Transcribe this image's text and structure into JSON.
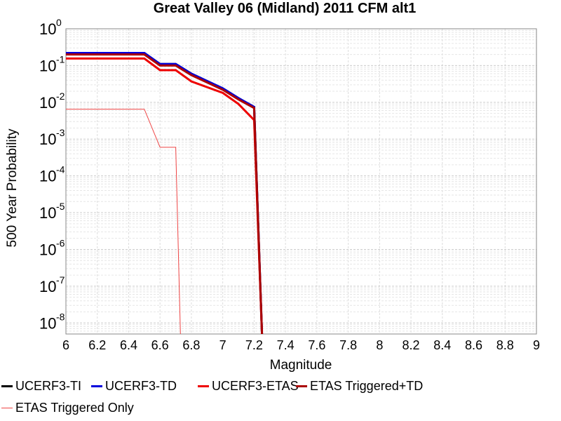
{
  "chart_data": {
    "type": "line",
    "title": "Great Valley 06 (Midland) 2011 CFM alt1",
    "xlabel": "Magnitude",
    "ylabel": "500 Year Probability",
    "xlim": [
      6,
      9
    ],
    "ylim_exponent": [
      -8.3,
      0
    ],
    "y_scale": "log",
    "grid": true,
    "legend_position": "bottom",
    "x_ticks": [
      "6",
      "6.2",
      "6.4",
      "6.6",
      "6.8",
      "7",
      "7.2",
      "7.4",
      "7.6",
      "7.8",
      "8",
      "8.2",
      "8.4",
      "8.6",
      "8.8",
      "9"
    ],
    "y_ticks": [
      {
        "base": "10",
        "exp": "0"
      },
      {
        "base": "10",
        "exp": "-1"
      },
      {
        "base": "10",
        "exp": "-2"
      },
      {
        "base": "10",
        "exp": "-3"
      },
      {
        "base": "10",
        "exp": "-4"
      },
      {
        "base": "10",
        "exp": "-5"
      },
      {
        "base": "10",
        "exp": "-6"
      },
      {
        "base": "10",
        "exp": "-7"
      },
      {
        "base": "10",
        "exp": "-8"
      }
    ],
    "series": [
      {
        "name": "UCERF3-TI",
        "color": "#000000",
        "width": 3,
        "points": [
          [
            6.0,
            0.22
          ],
          [
            6.5,
            0.22
          ],
          [
            6.6,
            0.11
          ],
          [
            6.7,
            0.11
          ],
          [
            6.8,
            0.06
          ],
          [
            7.0,
            0.024
          ],
          [
            7.1,
            0.013
          ],
          [
            7.2,
            0.0075
          ],
          [
            7.25,
            1e-09
          ]
        ]
      },
      {
        "name": "UCERF3-TD",
        "color": "#0000dd",
        "width": 3,
        "points": [
          [
            6.0,
            0.22
          ],
          [
            6.5,
            0.22
          ],
          [
            6.6,
            0.11
          ],
          [
            6.7,
            0.11
          ],
          [
            6.8,
            0.06
          ],
          [
            7.0,
            0.024
          ],
          [
            7.1,
            0.013
          ],
          [
            7.2,
            0.0075
          ],
          [
            7.25,
            1e-09
          ]
        ]
      },
      {
        "name": "UCERF3-ETAS",
        "color": "#ee0000",
        "width": 3,
        "points": [
          [
            6.0,
            0.155
          ],
          [
            6.5,
            0.155
          ],
          [
            6.6,
            0.075
          ],
          [
            6.7,
            0.075
          ],
          [
            6.8,
            0.037
          ],
          [
            7.0,
            0.018
          ],
          [
            7.1,
            0.009
          ],
          [
            7.2,
            0.0033
          ],
          [
            7.25,
            1e-09
          ]
        ]
      },
      {
        "name": "ETAS Triggered+TD",
        "color": "#aa0000",
        "width": 3,
        "points": [
          [
            6.0,
            0.2
          ],
          [
            6.5,
            0.2
          ],
          [
            6.6,
            0.1
          ],
          [
            6.7,
            0.1
          ],
          [
            6.8,
            0.055
          ],
          [
            7.0,
            0.022
          ],
          [
            7.1,
            0.012
          ],
          [
            7.2,
            0.007
          ],
          [
            7.25,
            1e-09
          ]
        ]
      },
      {
        "name": "ETAS Triggered Only",
        "color": "#ee4444",
        "width": 1,
        "points": [
          [
            6.0,
            0.0065
          ],
          [
            6.5,
            0.0065
          ],
          [
            6.6,
            0.0006
          ],
          [
            6.7,
            0.0006
          ],
          [
            6.73,
            1e-09
          ]
        ]
      }
    ]
  }
}
